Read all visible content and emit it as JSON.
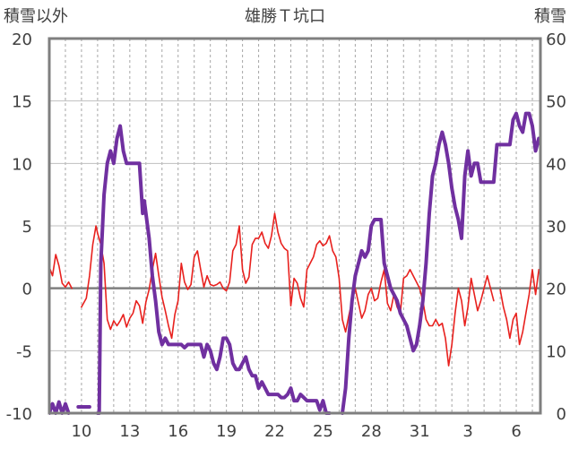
{
  "chart_data": {
    "type": "line",
    "title": "雄勝Ｔ坑口",
    "left_axis_label": "積雪以外",
    "right_axis_label": "積雪",
    "left_ylim": [
      -10,
      20
    ],
    "left_yticks": [
      "20",
      "15",
      "10",
      "5",
      "0",
      "-5",
      "-10"
    ],
    "right_ylim": [
      0,
      60
    ],
    "right_yticks": [
      "60",
      "50",
      "40",
      "30",
      "20",
      "10",
      "0"
    ],
    "x_range": [
      0,
      30.5
    ],
    "x_ticks": [
      {
        "x": 2,
        "label": "10"
      },
      {
        "x": 5,
        "label": "13"
      },
      {
        "x": 8,
        "label": "16"
      },
      {
        "x": 11,
        "label": "19"
      },
      {
        "x": 14,
        "label": "22"
      },
      {
        "x": 17,
        "label": "25"
      },
      {
        "x": 20,
        "label": "28"
      },
      {
        "x": 23,
        "label": "31"
      },
      {
        "x": 26,
        "label": "3"
      },
      {
        "x": 29,
        "label": "6"
      }
    ],
    "zero_line": 0,
    "series": [
      {
        "name": "積雪以外",
        "axis": "left",
        "color": "#e8211e",
        "points": [
          [
            0.0,
            1.7
          ],
          [
            0.2,
            1.0
          ],
          [
            0.4,
            2.7
          ],
          [
            0.6,
            1.8
          ],
          [
            0.8,
            0.4
          ],
          [
            1.0,
            0.1
          ],
          [
            1.2,
            0.5
          ],
          [
            1.4,
            0.0
          ],
          null,
          [
            2.0,
            -1.5
          ],
          [
            2.3,
            -0.8
          ],
          [
            2.5,
            1.0
          ],
          [
            2.7,
            3.5
          ],
          [
            2.9,
            5.0
          ],
          [
            3.0,
            4.4
          ],
          [
            3.2,
            3.5
          ],
          [
            3.4,
            2.0
          ],
          [
            3.6,
            -2.5
          ],
          [
            3.8,
            -3.3
          ],
          [
            4.0,
            -2.6
          ],
          [
            4.2,
            -3.0
          ],
          [
            4.4,
            -2.6
          ],
          [
            4.6,
            -2.1
          ],
          [
            4.8,
            -3.1
          ],
          [
            5.0,
            -2.4
          ],
          [
            5.2,
            -2.0
          ],
          [
            5.4,
            -1.0
          ],
          [
            5.6,
            -1.4
          ],
          [
            5.8,
            -2.8
          ],
          [
            6.0,
            -1.1
          ],
          [
            6.2,
            -0.1
          ],
          [
            6.4,
            1.5
          ],
          [
            6.6,
            2.8
          ],
          [
            6.8,
            1.0
          ],
          [
            7.0,
            -0.7
          ],
          [
            7.2,
            -1.8
          ],
          [
            7.4,
            -3.0
          ],
          [
            7.6,
            -4.0
          ],
          [
            7.8,
            -2.1
          ],
          [
            8.0,
            -1.0
          ],
          [
            8.2,
            2.0
          ],
          [
            8.4,
            0.5
          ],
          [
            8.6,
            -0.1
          ],
          [
            8.8,
            0.3
          ],
          [
            9.0,
            2.5
          ],
          [
            9.2,
            3.0
          ],
          [
            9.4,
            1.5
          ],
          [
            9.6,
            0.1
          ],
          [
            9.8,
            1.0
          ],
          [
            10.0,
            0.3
          ],
          [
            10.2,
            0.2
          ],
          [
            10.4,
            0.3
          ],
          [
            10.6,
            0.5
          ],
          [
            10.8,
            0.0
          ],
          [
            11.0,
            -0.2
          ],
          [
            11.2,
            0.5
          ],
          [
            11.4,
            3.0
          ],
          [
            11.6,
            3.5
          ],
          [
            11.8,
            5.0
          ],
          [
            12.0,
            1.5
          ],
          [
            12.2,
            0.4
          ],
          [
            12.4,
            0.9
          ],
          [
            12.6,
            3.5
          ],
          [
            12.8,
            4.0
          ],
          [
            13.0,
            4.0
          ],
          [
            13.2,
            4.5
          ],
          [
            13.4,
            3.6
          ],
          [
            13.6,
            3.2
          ],
          [
            13.8,
            4.2
          ],
          [
            14.0,
            6.0
          ],
          [
            14.2,
            4.5
          ],
          [
            14.4,
            3.6
          ],
          [
            14.6,
            3.2
          ],
          [
            14.8,
            3.0
          ],
          [
            15.0,
            -1.4
          ],
          [
            15.2,
            0.8
          ],
          [
            15.4,
            0.4
          ],
          [
            15.6,
            -0.8
          ],
          [
            15.8,
            -1.5
          ],
          [
            16.0,
            1.5
          ],
          [
            16.2,
            2.0
          ],
          [
            16.4,
            2.5
          ],
          [
            16.6,
            3.5
          ],
          [
            16.8,
            3.8
          ],
          [
            17.0,
            3.4
          ],
          [
            17.2,
            3.6
          ],
          [
            17.4,
            4.2
          ],
          [
            17.6,
            3.0
          ],
          [
            17.8,
            2.5
          ],
          [
            18.0,
            0.8
          ],
          [
            18.2,
            -2.5
          ],
          [
            18.4,
            -3.5
          ],
          [
            18.6,
            -2.2
          ],
          [
            18.8,
            -1.0
          ],
          [
            19.0,
            0.0
          ],
          [
            19.2,
            -1.2
          ],
          [
            19.4,
            -2.4
          ],
          [
            19.6,
            -1.8
          ],
          [
            19.8,
            -0.5
          ],
          [
            20.0,
            0.0
          ],
          [
            20.2,
            -1.0
          ],
          [
            20.4,
            -0.8
          ],
          [
            20.6,
            0.5
          ],
          [
            20.8,
            1.5
          ],
          [
            21.0,
            -1.2
          ],
          [
            21.2,
            -1.8
          ],
          [
            21.4,
            -0.5
          ],
          [
            21.6,
            -1.5
          ],
          [
            21.8,
            -2.0
          ],
          [
            22.0,
            0.8
          ],
          [
            22.2,
            1.0
          ],
          [
            22.4,
            1.5
          ],
          [
            22.6,
            1.0
          ],
          [
            22.8,
            0.5
          ],
          [
            23.0,
            0.0
          ],
          [
            23.2,
            -1.0
          ],
          [
            23.4,
            -2.5
          ],
          [
            23.6,
            -3.0
          ],
          [
            23.8,
            -3.0
          ],
          [
            24.0,
            -2.5
          ],
          [
            24.2,
            -3.0
          ],
          [
            24.4,
            -2.8
          ],
          [
            24.6,
            -4.0
          ],
          [
            24.8,
            -6.2
          ],
          [
            25.0,
            -4.5
          ],
          [
            25.2,
            -2.0
          ],
          [
            25.4,
            0.0
          ],
          [
            25.6,
            -1.0
          ],
          [
            25.8,
            -3.0
          ],
          [
            26.0,
            -1.5
          ],
          [
            26.2,
            0.8
          ],
          [
            26.4,
            -0.5
          ],
          [
            26.6,
            -1.8
          ],
          [
            26.8,
            -1.0
          ],
          [
            27.0,
            0.0
          ],
          [
            27.2,
            1.0
          ],
          [
            27.4,
            0.0
          ],
          [
            27.6,
            -1.0
          ],
          null,
          [
            28.0,
            -0.1
          ],
          [
            28.2,
            -1.5
          ],
          [
            28.4,
            -2.5
          ],
          [
            28.6,
            -4.0
          ],
          [
            28.8,
            -2.5
          ],
          [
            29.0,
            -2.0
          ],
          [
            29.2,
            -4.5
          ],
          [
            29.4,
            -3.5
          ],
          [
            29.6,
            -2.0
          ],
          [
            29.8,
            -0.5
          ],
          [
            30.0,
            1.5
          ],
          [
            30.2,
            -0.5
          ],
          [
            30.4,
            1.5
          ]
        ]
      },
      {
        "name": "積雪",
        "axis": "right",
        "color": "#7030a0",
        "points": [
          [
            0.0,
            0.0
          ],
          [
            0.2,
            1.5
          ],
          [
            0.4,
            0.0
          ],
          [
            0.6,
            1.8
          ],
          [
            0.8,
            0.0
          ],
          [
            1.0,
            1.5
          ],
          [
            1.2,
            0.0
          ],
          null,
          [
            1.8,
            1.0
          ],
          [
            2.0,
            1.0
          ],
          [
            2.5,
            1.0
          ],
          null,
          [
            3.0,
            0.0
          ],
          [
            3.1,
            0.0
          ],
          [
            3.2,
            24.0
          ],
          [
            3.4,
            35.0
          ],
          [
            3.6,
            40.0
          ],
          [
            3.8,
            42.0
          ],
          [
            4.0,
            40.0
          ],
          [
            4.2,
            44.0
          ],
          [
            4.4,
            46.0
          ],
          [
            4.6,
            42.0
          ],
          [
            4.8,
            40.0
          ],
          [
            5.0,
            40.0
          ],
          [
            5.4,
            40.0
          ],
          [
            5.6,
            40.0
          ],
          [
            5.8,
            32.0
          ],
          [
            5.9,
            34.0
          ],
          [
            6.0,
            32.0
          ],
          [
            6.2,
            28.0
          ],
          [
            6.4,
            22.0
          ],
          [
            6.6,
            18.0
          ],
          [
            6.8,
            13.0
          ],
          [
            7.0,
            11.0
          ],
          [
            7.2,
            12.0
          ],
          [
            7.4,
            11.0
          ],
          [
            7.6,
            11.0
          ],
          [
            8.0,
            11.0
          ],
          [
            8.2,
            11.0
          ],
          [
            8.4,
            10.5
          ],
          [
            8.6,
            11.0
          ],
          [
            9.0,
            11.0
          ],
          [
            9.4,
            11.0
          ],
          [
            9.6,
            9.0
          ],
          [
            9.8,
            11.0
          ],
          [
            10.0,
            10.0
          ],
          [
            10.2,
            8.0
          ],
          [
            10.4,
            7.0
          ],
          [
            10.6,
            9.0
          ],
          [
            10.8,
            12.0
          ],
          [
            11.0,
            12.0
          ],
          [
            11.2,
            11.0
          ],
          [
            11.4,
            8.0
          ],
          [
            11.6,
            7.0
          ],
          [
            11.8,
            7.0
          ],
          [
            12.0,
            8.0
          ],
          [
            12.2,
            9.0
          ],
          [
            12.4,
            7.0
          ],
          [
            12.6,
            6.0
          ],
          [
            12.8,
            6.0
          ],
          [
            13.0,
            4.0
          ],
          [
            13.2,
            5.0
          ],
          [
            13.4,
            4.0
          ],
          [
            13.6,
            3.0
          ],
          [
            13.8,
            3.0
          ],
          [
            14.0,
            3.0
          ],
          [
            14.2,
            3.0
          ],
          [
            14.4,
            2.5
          ],
          [
            14.6,
            2.5
          ],
          [
            14.8,
            3.0
          ],
          [
            15.0,
            4.0
          ],
          [
            15.2,
            2.0
          ],
          [
            15.4,
            2.0
          ],
          [
            15.6,
            3.0
          ],
          [
            15.8,
            2.5
          ],
          [
            16.0,
            2.0
          ],
          [
            16.4,
            2.0
          ],
          [
            16.6,
            2.0
          ],
          [
            16.8,
            0.5
          ],
          [
            17.0,
            2.0
          ],
          [
            17.2,
            0.0
          ],
          [
            17.4,
            0.0
          ],
          null,
          [
            18.2,
            0.0
          ],
          [
            18.4,
            4.0
          ],
          [
            18.6,
            12.0
          ],
          [
            18.8,
            18.0
          ],
          [
            19.0,
            22.0
          ],
          [
            19.2,
            24.0
          ],
          [
            19.4,
            26.0
          ],
          [
            19.6,
            25.0
          ],
          [
            19.8,
            26.0
          ],
          [
            20.0,
            30.0
          ],
          [
            20.2,
            31.0
          ],
          [
            20.4,
            31.0
          ],
          [
            20.6,
            31.0
          ],
          [
            20.8,
            24.0
          ],
          [
            21.0,
            22.0
          ],
          [
            21.2,
            20.0
          ],
          [
            21.4,
            19.0
          ],
          [
            21.6,
            18.0
          ],
          [
            21.8,
            16.0
          ],
          [
            22.0,
            15.0
          ],
          [
            22.2,
            14.0
          ],
          [
            22.4,
            12.0
          ],
          [
            22.6,
            10.0
          ],
          [
            22.8,
            11.0
          ],
          [
            23.0,
            14.0
          ],
          [
            23.2,
            18.0
          ],
          [
            23.4,
            24.0
          ],
          [
            23.6,
            32.0
          ],
          [
            23.8,
            38.0
          ],
          [
            24.0,
            40.0
          ],
          [
            24.2,
            43.0
          ],
          [
            24.4,
            45.0
          ],
          [
            24.6,
            43.0
          ],
          [
            24.8,
            40.0
          ],
          [
            25.0,
            36.0
          ],
          [
            25.2,
            33.0
          ],
          [
            25.4,
            31.0
          ],
          [
            25.6,
            28.0
          ],
          [
            25.8,
            38.0
          ],
          [
            26.0,
            42.0
          ],
          [
            26.2,
            38.0
          ],
          [
            26.4,
            40.0
          ],
          [
            26.6,
            40.0
          ],
          [
            26.8,
            37.0
          ],
          [
            27.0,
            37.0
          ],
          [
            27.4,
            37.0
          ],
          [
            27.6,
            37.0
          ],
          [
            27.8,
            43.0
          ],
          [
            28.0,
            43.0
          ],
          [
            28.2,
            43.0
          ],
          [
            28.4,
            43.0
          ],
          [
            28.6,
            43.0
          ],
          [
            28.8,
            47.0
          ],
          [
            29.0,
            48.0
          ],
          [
            29.2,
            46.0
          ],
          [
            29.4,
            45.0
          ],
          [
            29.6,
            48.0
          ],
          [
            29.8,
            48.0
          ],
          [
            30.0,
            46.0
          ],
          [
            30.2,
            42.0
          ],
          [
            30.4,
            44.0
          ]
        ]
      }
    ]
  }
}
